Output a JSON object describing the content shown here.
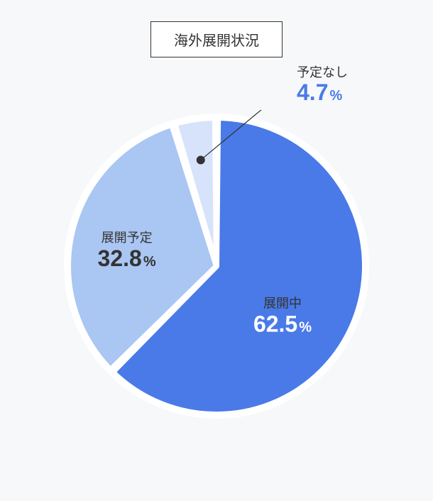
{
  "chart": {
    "type": "pie",
    "title": "海外展開状況",
    "background_color": "#f7f8fa",
    "slice_stroke_color": "#ffffff",
    "slice_stroke_width": 8,
    "outer_ring_color": "#ffffff",
    "outer_ring_width": 10,
    "callout_line_color": "#333333",
    "callout_dot_color": "#333333",
    "callout_dot_radius": 6,
    "title_border_color": "#333333",
    "title_fontsize": 20,
    "label_fontsize": 18,
    "value_fontsize": 32,
    "pct_fontsize": 20,
    "slices": [
      {
        "label": "展開中",
        "value": 62.5,
        "color": "#4a7ae8",
        "text_color": "#ffffff",
        "inline": true
      },
      {
        "label": "展開予定",
        "value": 32.8,
        "color": "#aac6f2",
        "text_color": "#333333",
        "inline": true
      },
      {
        "label": "予定なし",
        "value": 4.7,
        "color": "#d7e3fa",
        "text_color": "#4a7ae8",
        "inline": false
      }
    ]
  }
}
